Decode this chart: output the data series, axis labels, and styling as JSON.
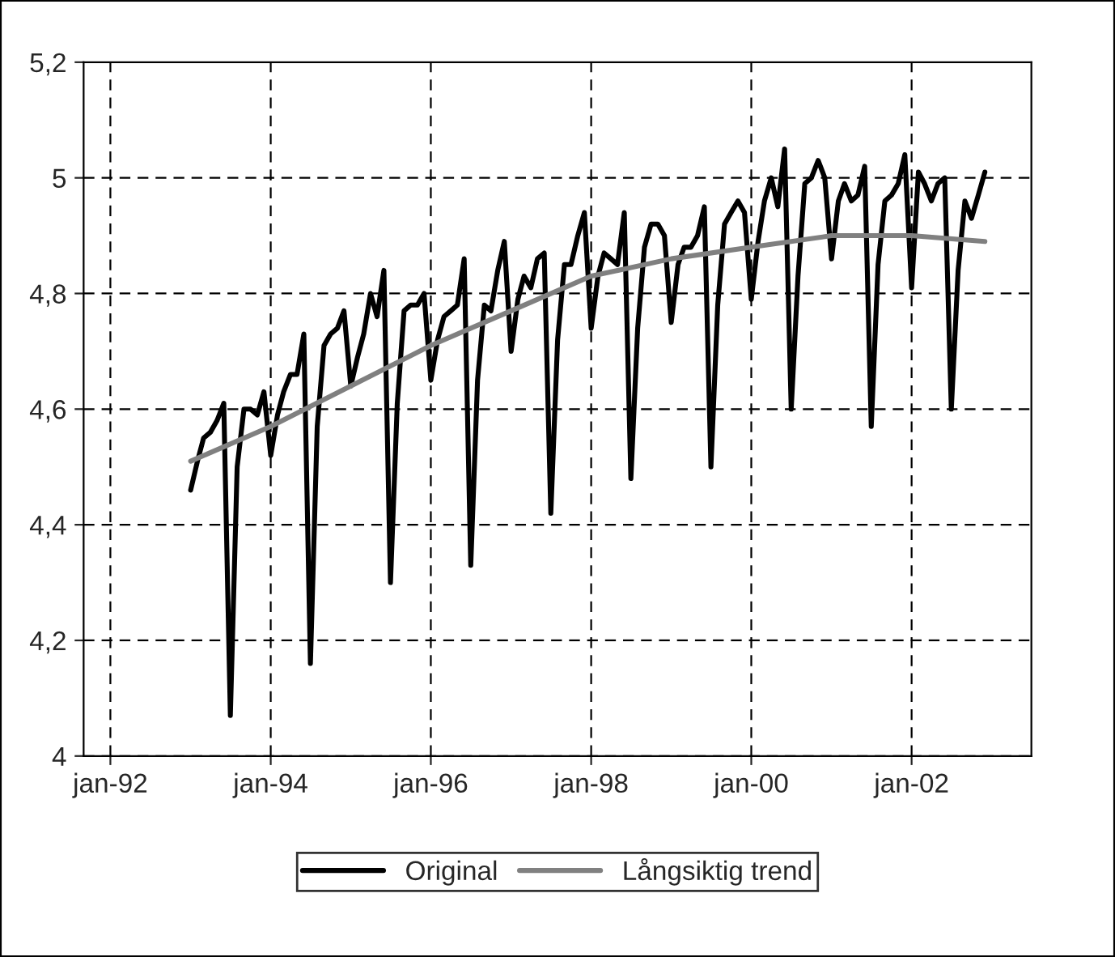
{
  "chart_data": {
    "type": "line",
    "xlim": [
      "1991-09",
      "2003-07"
    ],
    "xticks": [
      {
        "value": "1992-01",
        "label": "jan-92"
      },
      {
        "value": "1994-01",
        "label": "jan-94"
      },
      {
        "value": "1996-01",
        "label": "jan-96"
      },
      {
        "value": "1998-01",
        "label": "jan-98"
      },
      {
        "value": "2000-01",
        "label": "jan-00"
      },
      {
        "value": "2002-01",
        "label": "jan-02"
      }
    ],
    "ylim": [
      4,
      5.2
    ],
    "yticks": [
      4,
      {
        "value": 4.2,
        "label": "4,2"
      },
      {
        "value": 4.4,
        "label": "4,4"
      },
      {
        "value": 4.6,
        "label": "4,6"
      },
      {
        "value": 4.8,
        "label": "4,8"
      },
      5,
      {
        "value": 5.2,
        "label": "5,2"
      }
    ],
    "grid": true,
    "legend": "bottom",
    "line_style": "solid",
    "marker": "none",
    "series": [
      {
        "name": "Original",
        "color": "#000000",
        "x": [
          "1993-01",
          "1993-02",
          "1993-03",
          "1993-04",
          "1993-05",
          "1993-06",
          "1993-07",
          "1993-08",
          "1993-09",
          "1993-10",
          "1993-11",
          "1993-12",
          "1994-01",
          "1994-02",
          "1994-03",
          "1994-04",
          "1994-05",
          "1994-06",
          "1994-07",
          "1994-08",
          "1994-09",
          "1994-10",
          "1994-11",
          "1994-12",
          "1995-01",
          "1995-02",
          "1995-03",
          "1995-04",
          "1995-05",
          "1995-06",
          "1995-07",
          "1995-08",
          "1995-09",
          "1995-10",
          "1995-11",
          "1995-12",
          "1996-01",
          "1996-02",
          "1996-03",
          "1996-04",
          "1996-05",
          "1996-06",
          "1996-07",
          "1996-08",
          "1996-09",
          "1996-10",
          "1996-11",
          "1996-12",
          "1997-01",
          "1997-02",
          "1997-03",
          "1997-04",
          "1997-05",
          "1997-06",
          "1997-07",
          "1997-08",
          "1997-09",
          "1997-10",
          "1997-11",
          "1997-12",
          "1998-01",
          "1998-02",
          "1998-03",
          "1998-04",
          "1998-05",
          "1998-06",
          "1998-07",
          "1998-08",
          "1998-09",
          "1998-10",
          "1998-11",
          "1998-12",
          "1999-01",
          "1999-02",
          "1999-03",
          "1999-04",
          "1999-05",
          "1999-06",
          "1999-07",
          "1999-08",
          "1999-09",
          "1999-10",
          "1999-11",
          "1999-12",
          "2000-01",
          "2000-02",
          "2000-03",
          "2000-04",
          "2000-05",
          "2000-06",
          "2000-07",
          "2000-08",
          "2000-09",
          "2000-10",
          "2000-11",
          "2000-12",
          "2001-01",
          "2001-02",
          "2001-03",
          "2001-04",
          "2001-05",
          "2001-06",
          "2001-07",
          "2001-08",
          "2001-09",
          "2001-10",
          "2001-11",
          "2001-12",
          "2002-01",
          "2002-02",
          "2002-03",
          "2002-04",
          "2002-05",
          "2002-06",
          "2002-07",
          "2002-08",
          "2002-09",
          "2002-10",
          "2002-11",
          "2002-12"
        ],
        "values": [
          4.46,
          4.51,
          4.55,
          4.56,
          4.58,
          4.61,
          4.07,
          4.5,
          4.6,
          4.6,
          4.59,
          4.63,
          4.52,
          4.59,
          4.63,
          4.66,
          4.66,
          4.73,
          4.16,
          4.57,
          4.71,
          4.73,
          4.74,
          4.77,
          4.64,
          4.69,
          4.73,
          4.8,
          4.76,
          4.84,
          4.3,
          4.61,
          4.77,
          4.78,
          4.78,
          4.8,
          4.65,
          4.72,
          4.76,
          4.77,
          4.78,
          4.86,
          4.33,
          4.65,
          4.78,
          4.77,
          4.84,
          4.89,
          4.7,
          4.79,
          4.83,
          4.81,
          4.86,
          4.87,
          4.42,
          4.72,
          4.85,
          4.85,
          4.9,
          4.94,
          4.74,
          4.83,
          4.87,
          4.86,
          4.85,
          4.94,
          4.48,
          4.74,
          4.88,
          4.92,
          4.92,
          4.9,
          4.75,
          4.85,
          4.88,
          4.88,
          4.9,
          4.95,
          4.5,
          4.78,
          4.92,
          4.94,
          4.96,
          4.94,
          4.79,
          4.89,
          4.96,
          5.0,
          4.95,
          5.05,
          4.6,
          4.83,
          4.99,
          5.0,
          5.03,
          5.0,
          4.86,
          4.96,
          4.99,
          4.96,
          4.97,
          5.02,
          4.57,
          4.85,
          4.96,
          4.97,
          4.99,
          5.04,
          4.81,
          5.01,
          4.99,
          4.96,
          4.99,
          5.0,
          4.6,
          4.84,
          4.96,
          4.93,
          4.97,
          5.01
        ]
      },
      {
        "name": "Långsiktig trend",
        "color": "#808080",
        "x": [
          "1993-01",
          "1994-01",
          "1995-01",
          "1996-01",
          "1997-01",
          "1998-01",
          "1999-01",
          "2000-01",
          "2001-01",
          "2001-07",
          "2002-01",
          "2002-12"
        ],
        "values": [
          4.51,
          4.57,
          4.64,
          4.71,
          4.77,
          4.83,
          4.86,
          4.88,
          4.9,
          4.9,
          4.9,
          4.89
        ]
      }
    ]
  }
}
